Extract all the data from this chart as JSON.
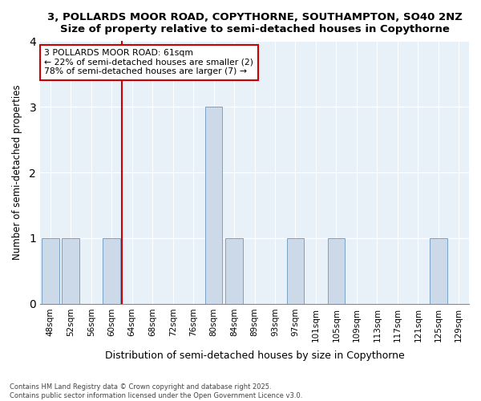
{
  "title_line1": "3, POLLARDS MOOR ROAD, COPYTHORNE, SOUTHAMPTON, SO40 2NZ",
  "title_line2": "Size of property relative to semi-detached houses in Copythorne",
  "xlabel": "Distribution of semi-detached houses by size in Copythorne",
  "ylabel": "Number of semi-detached properties",
  "categories": [
    "48sqm",
    "52sqm",
    "56sqm",
    "60sqm",
    "64sqm",
    "68sqm",
    "72sqm",
    "76sqm",
    "80sqm",
    "84sqm",
    "89sqm",
    "93sqm",
    "97sqm",
    "101sqm",
    "105sqm",
    "109sqm",
    "113sqm",
    "117sqm",
    "121sqm",
    "125sqm",
    "129sqm"
  ],
  "values": [
    1,
    1,
    0,
    1,
    0,
    0,
    0,
    0,
    3,
    1,
    0,
    0,
    1,
    0,
    1,
    0,
    0,
    0,
    0,
    1,
    0
  ],
  "bar_color": "#ccd9e8",
  "bar_edge_color": "#7aa0c4",
  "subject_line_index": 3,
  "subject_line_color": "#cc0000",
  "annotation_title": "3 POLLARDS MOOR ROAD: 61sqm",
  "annotation_line1": "← 22% of semi-detached houses are smaller (2)",
  "annotation_line2": "78% of semi-detached houses are larger (7) →",
  "ylim": [
    0,
    4
  ],
  "yticks": [
    0,
    1,
    2,
    3,
    4
  ],
  "footer_line1": "Contains HM Land Registry data © Crown copyright and database right 2025.",
  "footer_line2": "Contains public sector information licensed under the Open Government Licence v3.0.",
  "bg_color": "#ffffff"
}
